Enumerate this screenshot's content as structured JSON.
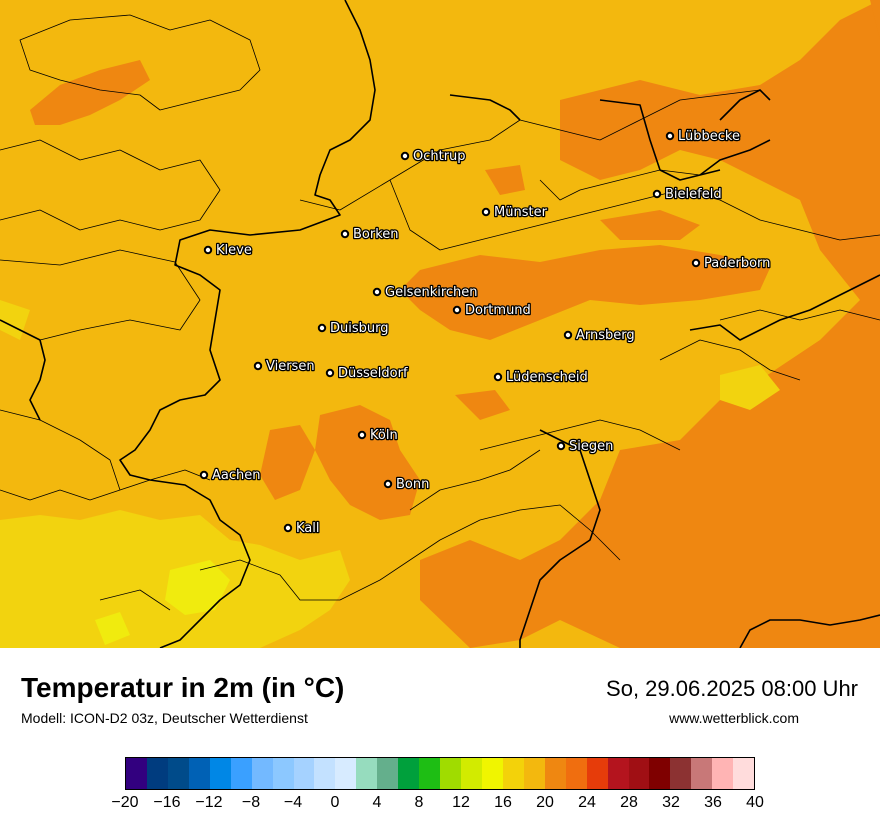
{
  "title": "Temperatur in 2m (in °C)",
  "model": "Modell: ICON-D2 03z, Deutscher Wetterdienst",
  "datetime": "So, 29.06.2025 08:00 Uhr",
  "website": "www.wetterblick.com",
  "colors": {
    "base": "#F3B80E",
    "warm": "#EF8711",
    "cool": "#F2D30F",
    "coolest": "#F0EB0E"
  },
  "cities": [
    {
      "name": "Ochtrup"
    },
    {
      "name": "Lübbecke"
    },
    {
      "name": "Bielefeld"
    },
    {
      "name": "Münster"
    },
    {
      "name": "Borken"
    },
    {
      "name": "Kleve"
    },
    {
      "name": "Paderborn"
    },
    {
      "name": "Gelsenkirchen"
    },
    {
      "name": "Dortmund"
    },
    {
      "name": "Duisburg"
    },
    {
      "name": "Arnsberg"
    },
    {
      "name": "Viersen"
    },
    {
      "name": "Düsseldorf"
    },
    {
      "name": "Lüdenscheid"
    },
    {
      "name": "Köln"
    },
    {
      "name": "Siegen"
    },
    {
      "name": "Aachen"
    },
    {
      "name": "Bonn"
    },
    {
      "name": "Kall"
    }
  ],
  "legend": {
    "colors": [
      "#32007F",
      "#003C7F",
      "#004B8A",
      "#0061B5",
      "#0087E6",
      "#3AA0FF",
      "#73B9FF",
      "#8CC8FF",
      "#A5D2FF",
      "#C3E1FF",
      "#D7EBFF",
      "#96DCBE",
      "#64AF8C",
      "#00A03C",
      "#1EBE14",
      "#A0DC00",
      "#D2EB00",
      "#F0F500",
      "#F3D20A",
      "#F3B80E",
      "#EF8711",
      "#F06E0F",
      "#E63C0A",
      "#B4141E",
      "#A00F14",
      "#7F0000",
      "#8C3232",
      "#C87878",
      "#FFB4B4",
      "#FFDCDC"
    ],
    "ticks": [
      "−20",
      "−16",
      "−12",
      "−8",
      "−4",
      "0",
      "4",
      "8",
      "12",
      "16",
      "20",
      "24",
      "28",
      "32",
      "36",
      "40"
    ]
  }
}
